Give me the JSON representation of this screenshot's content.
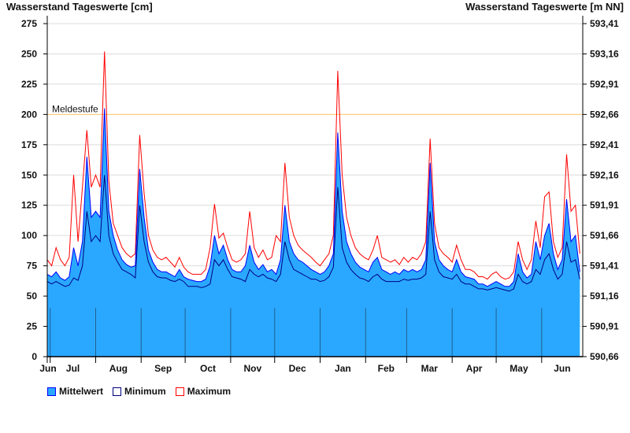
{
  "chart_data": {
    "type": "area",
    "title_left": "Wasserstand Tageswerte [cm]",
    "title_right": "Wasserstand Tageswerte [m NN]",
    "ylim": [
      0,
      275
    ],
    "yticks": [
      0,
      25,
      50,
      75,
      100,
      125,
      150,
      175,
      200,
      225,
      250,
      275
    ],
    "yticks_right": [
      "590,66",
      "590,91",
      "591,16",
      "591,41",
      "591,66",
      "591,91",
      "592,16",
      "592,41",
      "592,66",
      "592,91",
      "593,16",
      "593,41"
    ],
    "x_total_days": 365,
    "x_interval_days": 3,
    "months": [
      {
        "label": "Jun",
        "start_day": 0
      },
      {
        "label": "Jul",
        "start_day": 2
      },
      {
        "label": "Aug",
        "start_day": 33
      },
      {
        "label": "Sep",
        "start_day": 64
      },
      {
        "label": "Oct",
        "start_day": 94
      },
      {
        "label": "Nov",
        "start_day": 125
      },
      {
        "label": "Dec",
        "start_day": 155
      },
      {
        "label": "Jan",
        "start_day": 186
      },
      {
        "label": "Feb",
        "start_day": 217
      },
      {
        "label": "Mar",
        "start_day": 245
      },
      {
        "label": "Apr",
        "start_day": 276
      },
      {
        "label": "May",
        "start_day": 306
      },
      {
        "label": "Jun",
        "start_day": 337
      }
    ],
    "threshold": {
      "label": "Meldestufe",
      "value": 200,
      "color": "#ffcc66"
    },
    "grid": true,
    "legend_position": "bottom-left",
    "series": [
      {
        "name": "Mittelwert",
        "color": "#2aa8ff",
        "line": "#0000ff",
        "values": [
          68,
          66,
          70,
          65,
          63,
          66,
          90,
          75,
          95,
          165,
          115,
          120,
          115,
          205,
          120,
          100,
          88,
          80,
          76,
          74,
          75,
          155,
          115,
          88,
          78,
          72,
          70,
          70,
          68,
          66,
          72,
          66,
          64,
          63,
          62,
          62,
          64,
          75,
          100,
          85,
          92,
          80,
          72,
          70,
          70,
          75,
          92,
          78,
          72,
          76,
          70,
          72,
          68,
          80,
          125,
          95,
          85,
          80,
          78,
          75,
          72,
          70,
          68,
          70,
          75,
          85,
          185,
          120,
          95,
          85,
          78,
          74,
          72,
          70,
          78,
          82,
          72,
          70,
          68,
          70,
          68,
          72,
          70,
          72,
          70,
          72,
          80,
          160,
          95,
          80,
          75,
          72,
          70,
          80,
          70,
          66,
          65,
          64,
          60,
          60,
          58,
          60,
          62,
          60,
          58,
          58,
          62,
          85,
          70,
          65,
          68,
          95,
          80,
          100,
          110,
          85,
          72,
          80,
          130,
          95,
          100,
          70
        ]
      },
      {
        "name": "Minimum",
        "color": "#000080",
        "values": [
          62,
          60,
          62,
          60,
          58,
          59,
          65,
          63,
          75,
          120,
          95,
          100,
          95,
          150,
          100,
          85,
          78,
          72,
          70,
          68,
          65,
          125,
          95,
          78,
          70,
          66,
          65,
          65,
          63,
          62,
          64,
          62,
          58,
          58,
          58,
          57,
          58,
          60,
          80,
          75,
          80,
          72,
          66,
          65,
          64,
          62,
          72,
          68,
          66,
          68,
          65,
          64,
          62,
          68,
          95,
          80,
          72,
          70,
          68,
          66,
          64,
          64,
          62,
          63,
          66,
          74,
          140,
          90,
          78,
          72,
          68,
          65,
          64,
          62,
          66,
          68,
          64,
          62,
          62,
          62,
          62,
          64,
          63,
          64,
          64,
          65,
          68,
          120,
          80,
          70,
          66,
          65,
          64,
          68,
          62,
          60,
          60,
          58,
          56,
          56,
          55,
          56,
          57,
          56,
          55,
          54,
          56,
          68,
          62,
          60,
          62,
          72,
          68,
          80,
          85,
          72,
          64,
          68,
          95,
          78,
          80,
          64
        ]
      },
      {
        "name": "Maximum",
        "color": "#ff0000",
        "values": [
          80,
          75,
          90,
          80,
          75,
          82,
          150,
          95,
          140,
          187,
          140,
          150,
          140,
          252,
          145,
          110,
          100,
          90,
          85,
          82,
          85,
          183,
          135,
          100,
          88,
          82,
          80,
          82,
          78,
          74,
          82,
          74,
          70,
          68,
          68,
          68,
          72,
          90,
          126,
          98,
          102,
          90,
          80,
          78,
          80,
          85,
          120,
          90,
          82,
          88,
          80,
          82,
          100,
          95,
          160,
          115,
          100,
          92,
          88,
          85,
          82,
          78,
          75,
          80,
          85,
          100,
          236,
          150,
          115,
          100,
          90,
          85,
          82,
          80,
          88,
          100,
          82,
          80,
          78,
          80,
          76,
          82,
          78,
          82,
          80,
          85,
          95,
          180,
          110,
          90,
          85,
          82,
          78,
          92,
          80,
          72,
          72,
          70,
          66,
          66,
          64,
          68,
          70,
          66,
          64,
          65,
          70,
          95,
          80,
          72,
          80,
          112,
          90,
          132,
          136,
          95,
          82,
          90,
          167,
          120,
          125,
          85
        ]
      }
    ]
  }
}
